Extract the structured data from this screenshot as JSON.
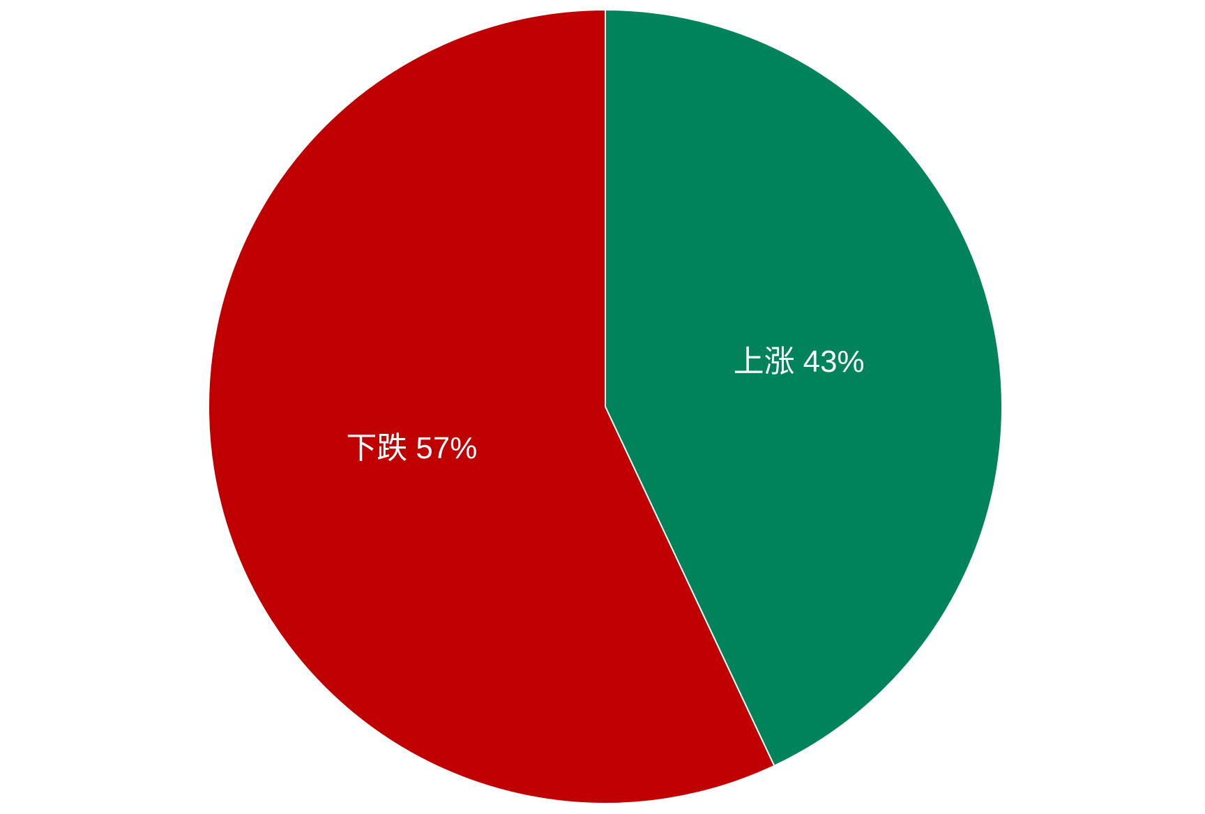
{
  "chart_data": {
    "type": "pie",
    "categories": [
      "上涨",
      "下跌"
    ],
    "values": [
      43,
      57
    ],
    "value_labels": [
      "43%",
      "57%"
    ],
    "colors": [
      "#00825a",
      "#c00000"
    ]
  }
}
